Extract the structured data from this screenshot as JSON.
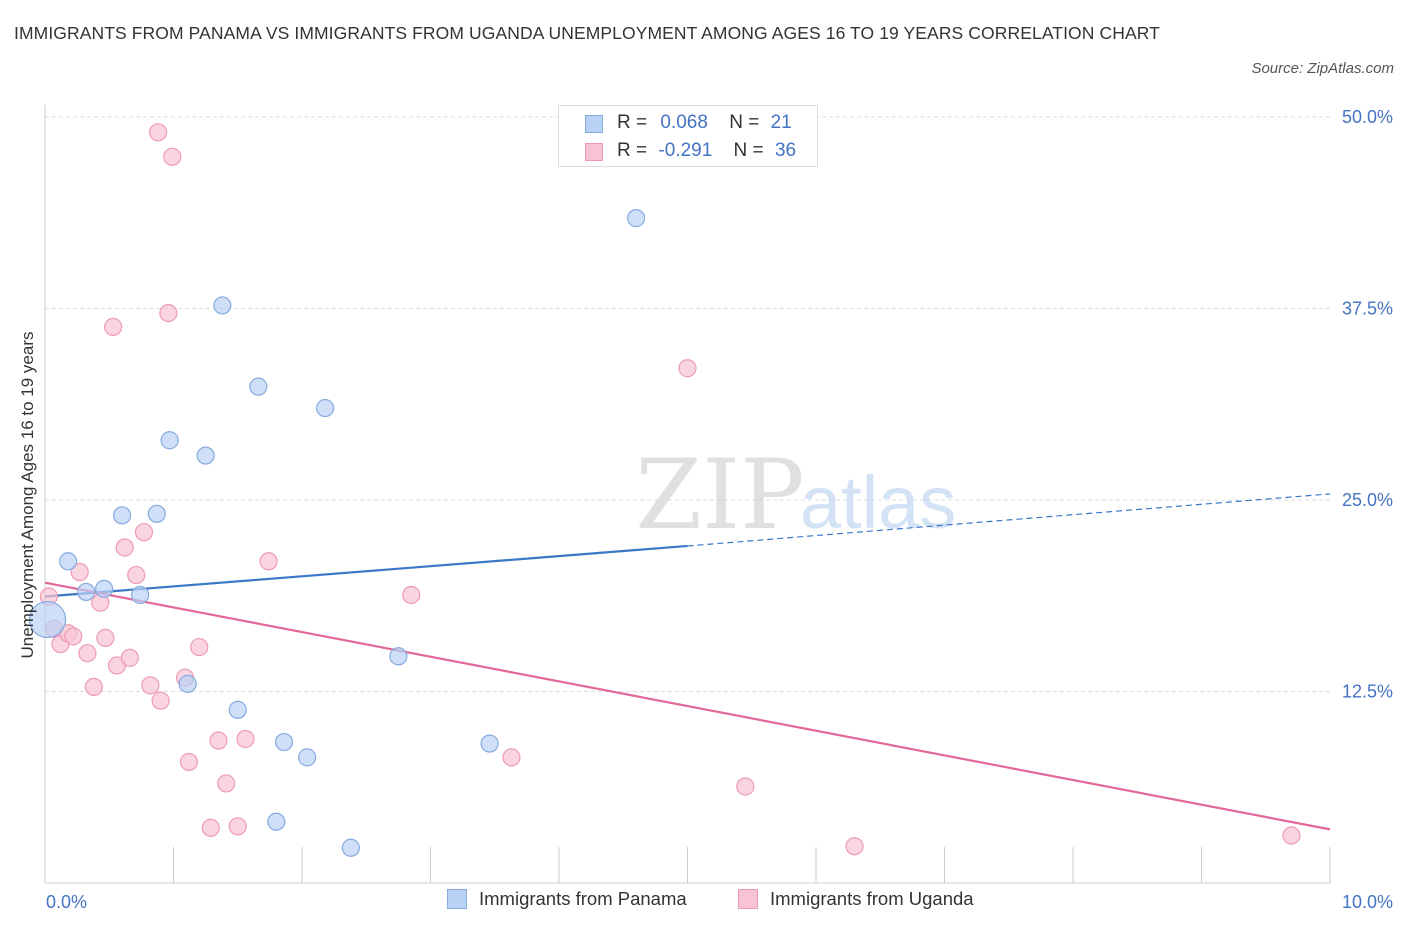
{
  "title": "IMMIGRANTS FROM PANAMA VS IMMIGRANTS FROM UGANDA UNEMPLOYMENT AMONG AGES 16 TO 19 YEARS CORRELATION CHART",
  "source": "Source: ZipAtlas.com",
  "watermark": {
    "zip": "ZIP",
    "atlas": "atlas"
  },
  "colors": {
    "panama_fill": "#b9d2f4",
    "panama_stroke": "#86abe0",
    "panama_line": "#3a78c8",
    "uganda_fill": "#f8c3d3",
    "uganda_stroke": "#ee9ab6",
    "uganda_line": "#e2679a",
    "axis_label": "#4472c4",
    "grid": "#dddddd"
  },
  "legend": {
    "panama": {
      "r_label": "R =",
      "r_value": "0.068",
      "n_label": "N =",
      "n_value": "21"
    },
    "uganda": {
      "r_label": "R =",
      "r_value": "-0.291",
      "n_label": "N =",
      "n_value": "36"
    }
  },
  "chart_data": {
    "type": "scatter",
    "title": "IMMIGRANTS FROM PANAMA VS IMMIGRANTS FROM UGANDA UNEMPLOYMENT AMONG AGES 16 TO 19 YEARS CORRELATION CHART",
    "xlabel": "",
    "ylabel": "Unemployment Among Ages 16 to 19 years",
    "xlim": [
      0,
      10
    ],
    "ylim": [
      0,
      50
    ],
    "x_tick_labels": [
      "0.0%",
      "10.0%"
    ],
    "y_ticks": [
      12.5,
      25.0,
      37.5,
      50.0
    ],
    "y_tick_labels": [
      "12.5%",
      "25.0%",
      "37.5%",
      "50.0%"
    ],
    "grid": true,
    "series": [
      {
        "name": "Immigrants from Panama",
        "r": 0.068,
        "n": 21,
        "trend": {
          "x0": 0.0,
          "y0": 18.7,
          "x1": 5.0,
          "y1": 22.0,
          "dashed_to_x": 10.0,
          "dashed_to_y": 25.4
        },
        "points": [
          {
            "x": 0.02,
            "y": 17.2,
            "big": true
          },
          {
            "x": 0.18,
            "y": 21.0
          },
          {
            "x": 0.32,
            "y": 19.0
          },
          {
            "x": 0.46,
            "y": 19.2
          },
          {
            "x": 0.6,
            "y": 24.0
          },
          {
            "x": 0.74,
            "y": 18.8
          },
          {
            "x": 0.87,
            "y": 24.1
          },
          {
            "x": 0.97,
            "y": 28.9
          },
          {
            "x": 1.11,
            "y": 13.0
          },
          {
            "x": 1.25,
            "y": 27.9
          },
          {
            "x": 1.38,
            "y": 37.7
          },
          {
            "x": 1.5,
            "y": 11.3
          },
          {
            "x": 1.66,
            "y": 32.4
          },
          {
            "x": 1.8,
            "y": 4.0
          },
          {
            "x": 1.86,
            "y": 9.2
          },
          {
            "x": 2.04,
            "y": 8.2
          },
          {
            "x": 2.18,
            "y": 31.0
          },
          {
            "x": 2.38,
            "y": 2.3
          },
          {
            "x": 2.75,
            "y": 14.8
          },
          {
            "x": 3.46,
            "y": 9.1
          },
          {
            "x": 4.6,
            "y": 43.4
          }
        ]
      },
      {
        "name": "Immigrants from Uganda",
        "r": -0.291,
        "n": 36,
        "trend": {
          "x0": 0.0,
          "y0": 19.6,
          "x1": 10.0,
          "y1": 3.5
        },
        "points": [
          {
            "x": 0.03,
            "y": 18.7
          },
          {
            "x": 0.07,
            "y": 16.6
          },
          {
            "x": 0.12,
            "y": 15.6
          },
          {
            "x": 0.18,
            "y": 16.3
          },
          {
            "x": 0.22,
            "y": 16.1
          },
          {
            "x": 0.27,
            "y": 20.3
          },
          {
            "x": 0.33,
            "y": 15.0
          },
          {
            "x": 0.38,
            "y": 12.8
          },
          {
            "x": 0.43,
            "y": 18.3
          },
          {
            "x": 0.47,
            "y": 16.0
          },
          {
            "x": 0.53,
            "y": 36.3
          },
          {
            "x": 0.56,
            "y": 14.2
          },
          {
            "x": 0.62,
            "y": 21.9
          },
          {
            "x": 0.66,
            "y": 14.7
          },
          {
            "x": 0.71,
            "y": 20.1
          },
          {
            "x": 0.77,
            "y": 22.9
          },
          {
            "x": 0.82,
            "y": 12.9
          },
          {
            "x": 0.88,
            "y": 49.0
          },
          {
            "x": 0.9,
            "y": 11.9
          },
          {
            "x": 0.96,
            "y": 37.2
          },
          {
            "x": 0.99,
            "y": 47.4
          },
          {
            "x": 1.09,
            "y": 13.4
          },
          {
            "x": 1.12,
            "y": 7.9
          },
          {
            "x": 1.2,
            "y": 15.4
          },
          {
            "x": 1.29,
            "y": 3.6
          },
          {
            "x": 1.35,
            "y": 9.3
          },
          {
            "x": 1.41,
            "y": 6.5
          },
          {
            "x": 1.5,
            "y": 3.7
          },
          {
            "x": 1.56,
            "y": 9.4
          },
          {
            "x": 1.74,
            "y": 21.0
          },
          {
            "x": 2.85,
            "y": 18.8
          },
          {
            "x": 3.63,
            "y": 8.2
          },
          {
            "x": 5.0,
            "y": 33.6
          },
          {
            "x": 5.45,
            "y": 6.3
          },
          {
            "x": 6.3,
            "y": 2.4
          },
          {
            "x": 9.7,
            "y": 3.1
          }
        ]
      }
    ]
  }
}
